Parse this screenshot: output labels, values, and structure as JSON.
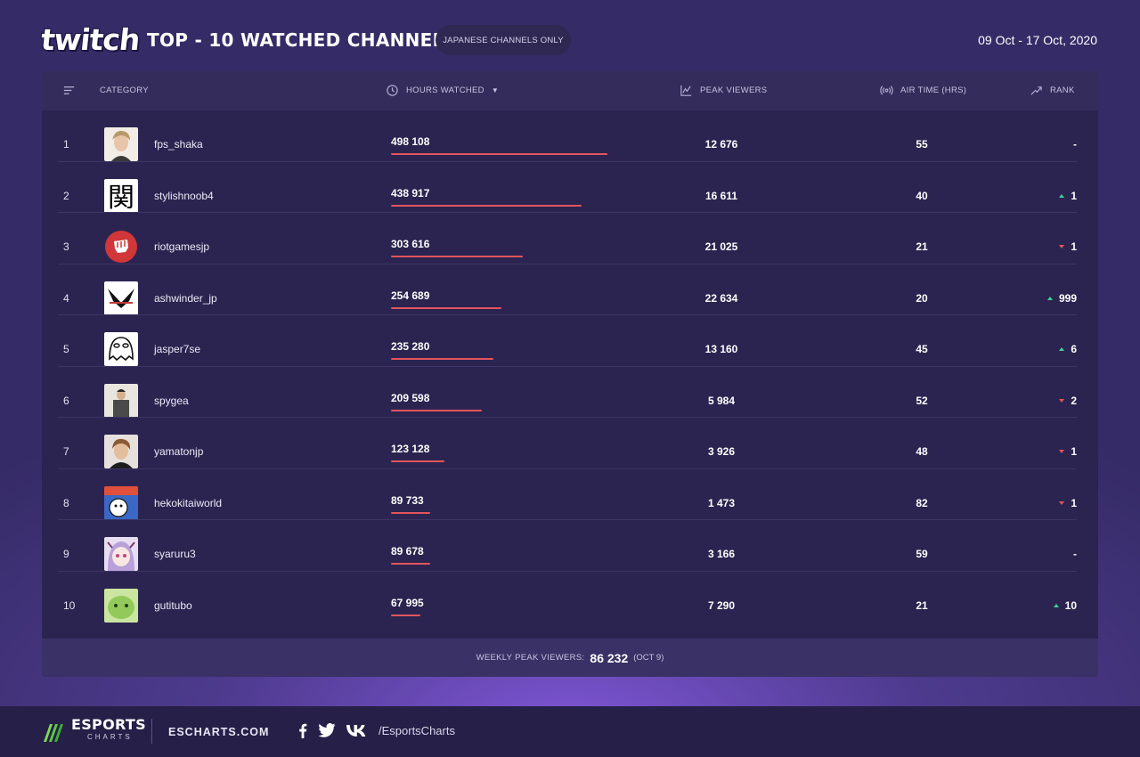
{
  "header": {
    "logo_text": "twitch",
    "title": "TOP - 10 WATCHED CHANNELS",
    "filter_label": "JAPANESE CHANNELS ONLY",
    "date_range": "09 Oct - 17 Oct, 2020"
  },
  "table": {
    "columns": {
      "category": "CATEGORY",
      "hours_watched": "HOURS WATCHED",
      "peak_viewers": "PEAK VIEWERS",
      "air_time": "AIR TIME (HRS)",
      "rank": "RANK"
    },
    "rows": [
      {
        "rank": "1",
        "channel": "fps_shaka",
        "hours": "498 108",
        "hours_value": 498108,
        "peak": "12 676",
        "air": "55",
        "change": "-",
        "direction": "none",
        "avatar": "photo-blond"
      },
      {
        "rank": "2",
        "channel": "stylishnoob4",
        "hours": "438 917",
        "hours_value": 438917,
        "peak": "16 611",
        "air": "40",
        "change": "1",
        "direction": "up",
        "avatar": "kanji-seki"
      },
      {
        "rank": "3",
        "channel": "riotgamesjp",
        "hours": "303 616",
        "hours_value": 303616,
        "peak": "21 025",
        "air": "21",
        "change": "1",
        "direction": "down",
        "avatar": "riot-fist"
      },
      {
        "rank": "4",
        "channel": "ashwinder_jp",
        "hours": "254 689",
        "hours_value": 254689,
        "peak": "22 634",
        "air": "20",
        "change": "999",
        "direction": "up",
        "avatar": "wings-logo"
      },
      {
        "rank": "5",
        "channel": "jasper7se",
        "hours": "235 280",
        "hours_value": 235280,
        "peak": "13 160",
        "air": "45",
        "change": "6",
        "direction": "up",
        "avatar": "ghost-doodle"
      },
      {
        "rank": "6",
        "channel": "spygea",
        "hours": "209 598",
        "hours_value": 209598,
        "peak": "5 984",
        "air": "52",
        "change": "2",
        "direction": "down",
        "avatar": "photo-man"
      },
      {
        "rank": "7",
        "channel": "yamatonjp",
        "hours": "123 128",
        "hours_value": 123128,
        "peak": "3 926",
        "air": "48",
        "change": "1",
        "direction": "down",
        "avatar": "photo-brown"
      },
      {
        "rank": "8",
        "channel": "hekokitaiworld",
        "hours": "89 733",
        "hours_value": 89733,
        "peak": "1 473",
        "air": "82",
        "change": "1",
        "direction": "down",
        "avatar": "cartoon-flag"
      },
      {
        "rank": "9",
        "channel": "syaruru3",
        "hours": "89 678",
        "hours_value": 89678,
        "peak": "3 166",
        "air": "59",
        "change": "-",
        "direction": "none",
        "avatar": "anime-purple"
      },
      {
        "rank": "10",
        "channel": "gutitubo",
        "hours": "67 995",
        "hours_value": 67995,
        "peak": "7 290",
        "air": "21",
        "change": "10",
        "direction": "up",
        "avatar": "green-blob"
      }
    ],
    "bar_max_value": 498108,
    "footer": {
      "label": "WEEKLY PEAK VIEWERS:",
      "value": "86 232",
      "date": "(OCT 9)"
    }
  },
  "footer": {
    "brand_main": "ESPORTS",
    "brand_sub": "CHARTS",
    "site": "ESCHARTS.COM",
    "social_handle": "/EsportsCharts",
    "social_icons": [
      "facebook-icon",
      "twitter-icon",
      "vk-icon"
    ]
  },
  "colors": {
    "bar": "#e2555c",
    "up": "#3dd29a",
    "down": "#e2555c",
    "panel": "#2b2450"
  }
}
